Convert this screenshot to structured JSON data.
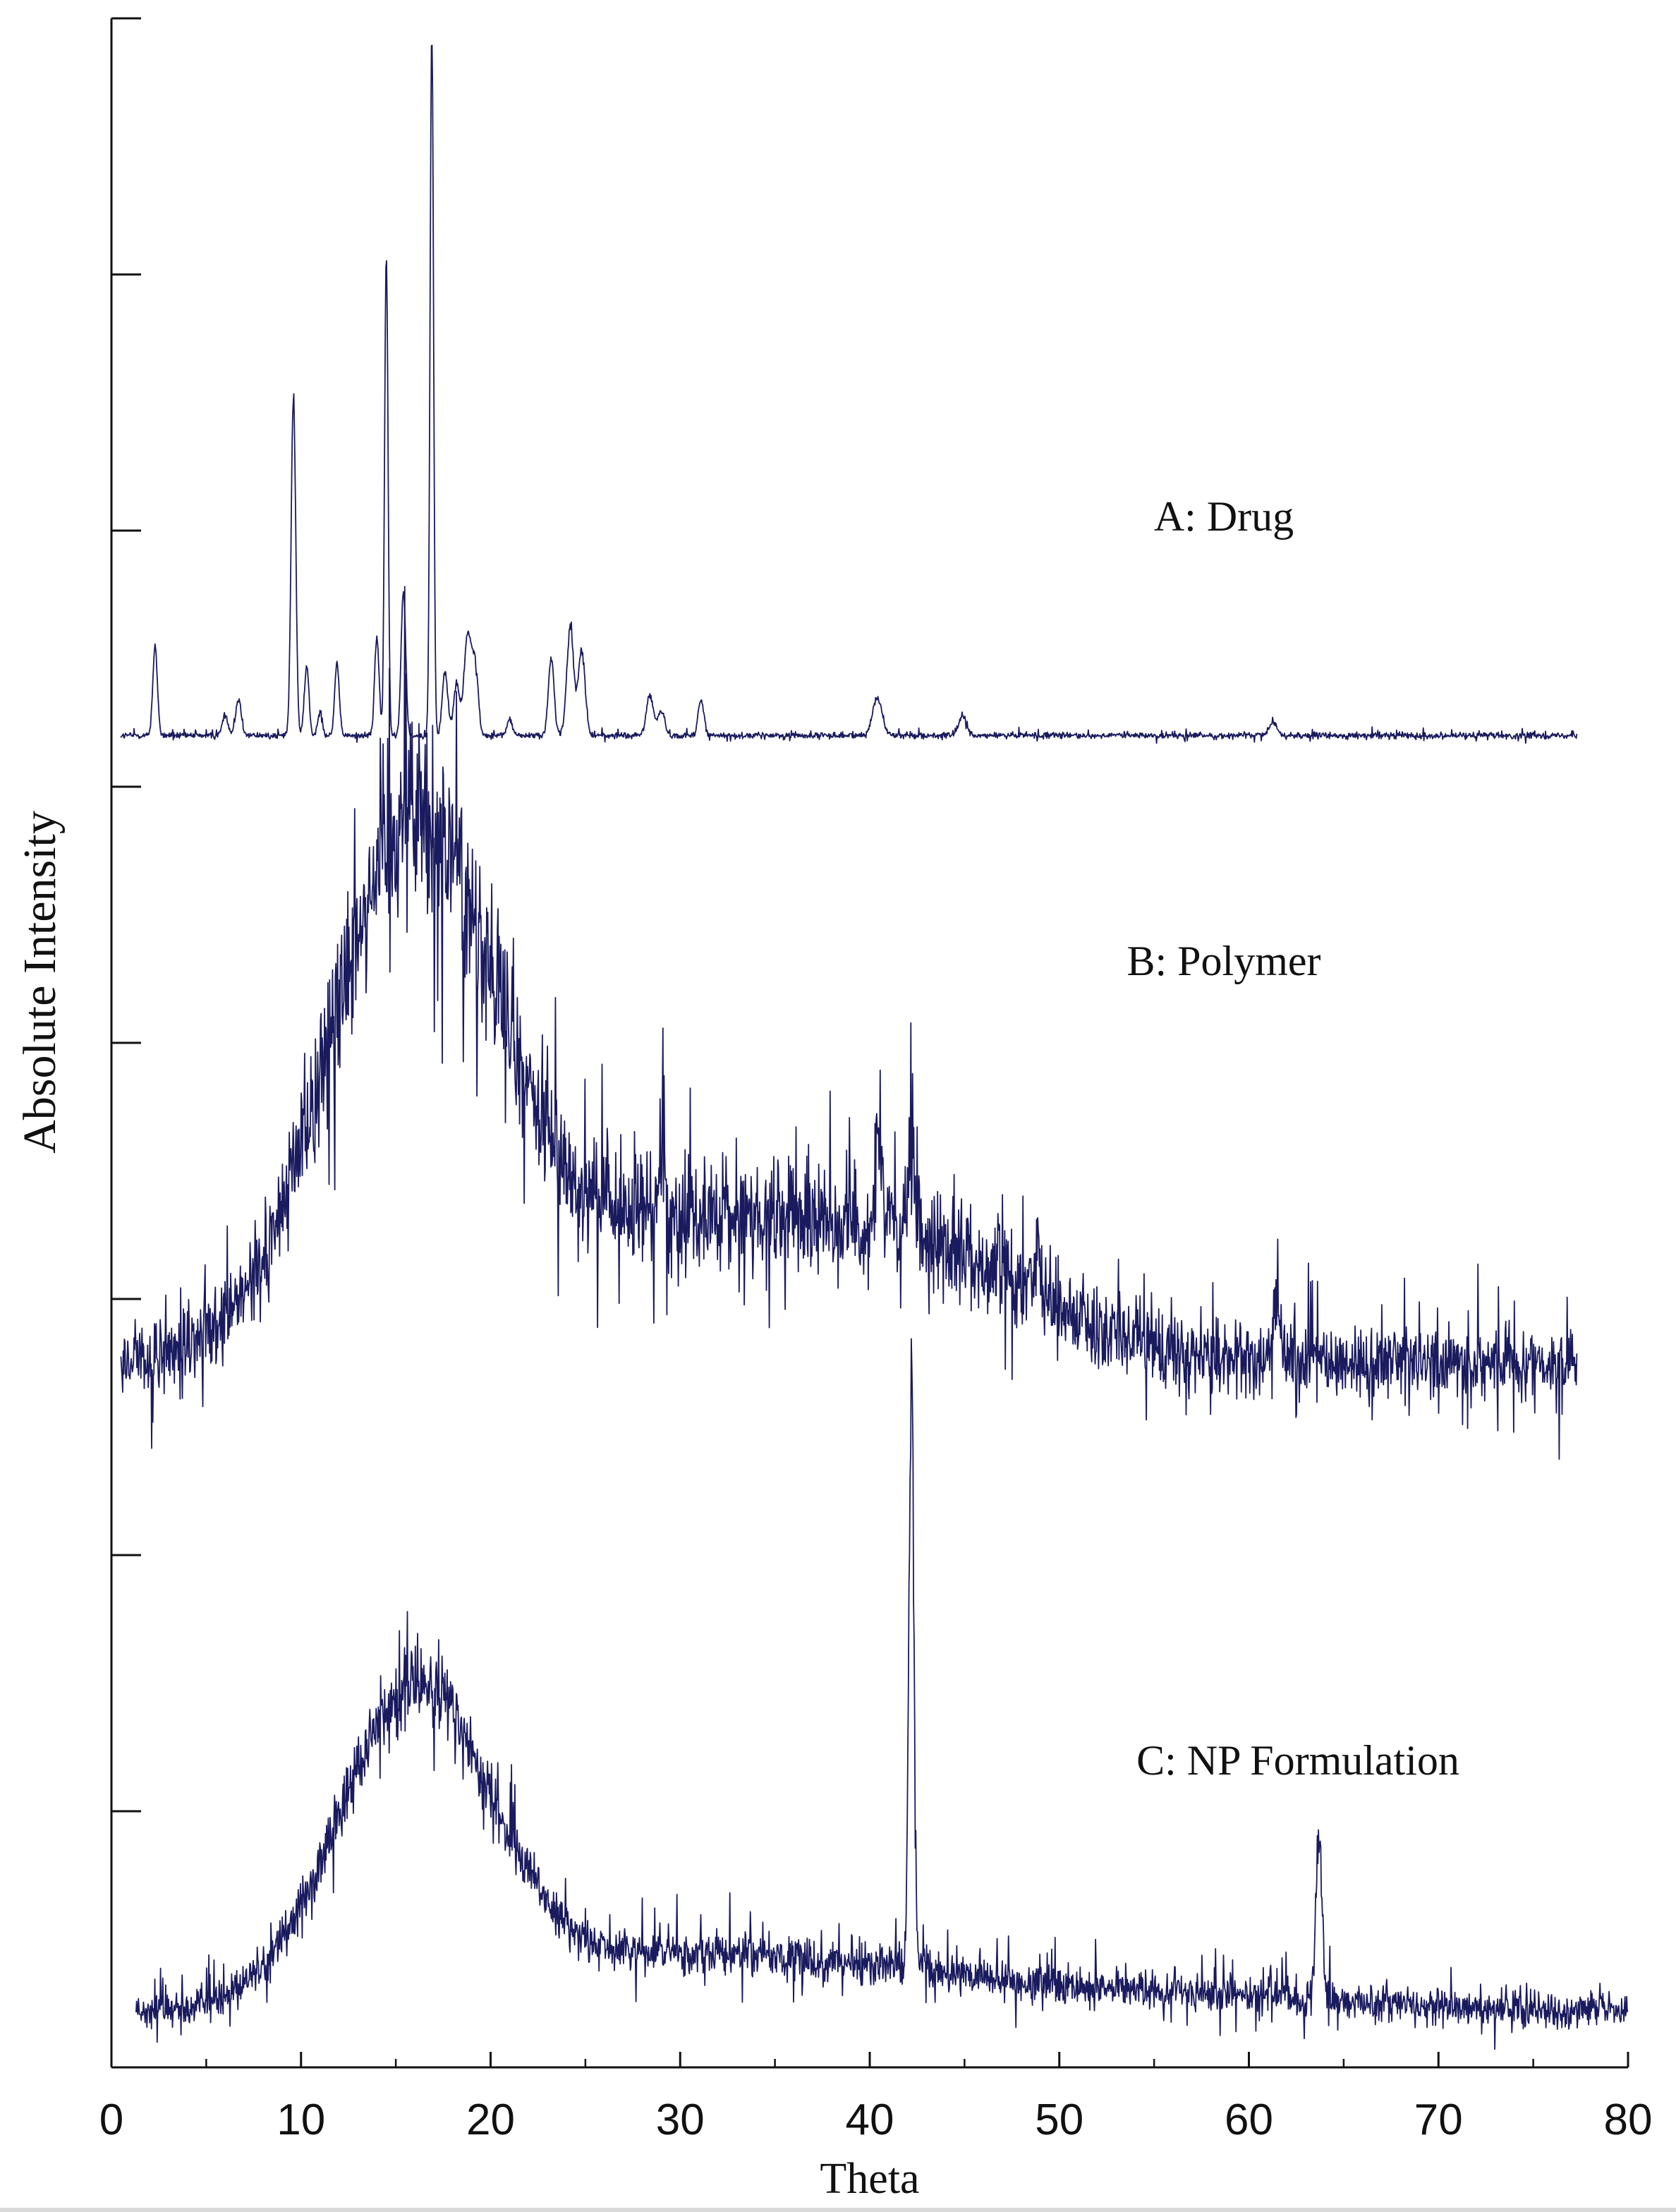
{
  "chart_data": {
    "type": "line",
    "title": "",
    "xlabel": "Theta",
    "ylabel": "Absolute Intensity",
    "xlim": [
      0,
      80
    ],
    "ylim": [
      0,
      8
    ],
    "x_ticks": [
      0,
      10,
      20,
      30,
      40,
      50,
      60,
      70,
      80
    ],
    "y_tick_values": [
      1,
      2,
      3,
      4,
      5,
      6,
      7,
      8
    ],
    "grid": false,
    "line_color": "#1a1a5e",
    "series": [
      {
        "name": "A: Drug",
        "label": "A: Drug",
        "x_range": [
          0.5,
          77.3
        ],
        "baseline": 5.2,
        "noise": 0.012,
        "peaks": [
          {
            "x": 2.3,
            "h": 0.35,
            "w": 0.12
          },
          {
            "x": 6.0,
            "h": 0.08,
            "w": 0.15
          },
          {
            "x": 6.7,
            "h": 0.14,
            "w": 0.15
          },
          {
            "x": 9.6,
            "h": 1.33,
            "w": 0.12
          },
          {
            "x": 10.3,
            "h": 0.27,
            "w": 0.12
          },
          {
            "x": 11.0,
            "h": 0.1,
            "w": 0.12
          },
          {
            "x": 11.9,
            "h": 0.28,
            "w": 0.12
          },
          {
            "x": 14.0,
            "h": 0.38,
            "w": 0.12
          },
          {
            "x": 14.5,
            "h": 1.87,
            "w": 0.09
          },
          {
            "x": 15.4,
            "h": 0.57,
            "w": 0.12
          },
          {
            "x": 16.9,
            "h": 2.75,
            "w": 0.09
          },
          {
            "x": 17.6,
            "h": 0.25,
            "w": 0.15
          },
          {
            "x": 18.2,
            "h": 0.2,
            "w": 0.15
          },
          {
            "x": 18.8,
            "h": 0.4,
            "w": 0.2
          },
          {
            "x": 19.2,
            "h": 0.25,
            "w": 0.15
          },
          {
            "x": 21.0,
            "h": 0.06,
            "w": 0.15
          },
          {
            "x": 23.2,
            "h": 0.3,
            "w": 0.15
          },
          {
            "x": 24.2,
            "h": 0.42,
            "w": 0.18
          },
          {
            "x": 24.8,
            "h": 0.33,
            "w": 0.18
          },
          {
            "x": 28.4,
            "h": 0.16,
            "w": 0.18
          },
          {
            "x": 29.0,
            "h": 0.1,
            "w": 0.18
          },
          {
            "x": 31.1,
            "h": 0.14,
            "w": 0.15
          },
          {
            "x": 40.4,
            "h": 0.15,
            "w": 0.25
          },
          {
            "x": 44.9,
            "h": 0.08,
            "w": 0.2
          },
          {
            "x": 61.3,
            "h": 0.05,
            "w": 0.2
          }
        ]
      },
      {
        "name": "B: Polymer",
        "label": "B: Polymer",
        "x_range": [
          0.5,
          77.3
        ],
        "baseline": 2.75,
        "noise": 0.14,
        "humps": [
          {
            "x": 15.8,
            "h": 2.0,
            "w": 4.3
          },
          {
            "x": 30.0,
            "h": 0.55,
            "w": 9.0
          },
          {
            "x": 44.0,
            "h": 0.3,
            "w": 6.0
          }
        ],
        "peaks": [
          {
            "x": 29.0,
            "h": 0.3,
            "w": 0.15
          },
          {
            "x": 40.5,
            "h": 0.35,
            "w": 0.15
          },
          {
            "x": 42.2,
            "h": 0.3,
            "w": 0.15
          },
          {
            "x": 48.9,
            "h": 0.2,
            "w": 0.15
          },
          {
            "x": 61.4,
            "h": 0.2,
            "w": 0.2
          }
        ]
      },
      {
        "name": "C: NP Formulation",
        "label": "C: NP Formulation",
        "x_range": [
          1.3,
          80.0
        ],
        "baseline": 0.22,
        "noise": 0.07,
        "humps": [
          {
            "x": 16.0,
            "h": 1.2,
            "w": 4.0
          },
          {
            "x": 30.0,
            "h": 0.2,
            "w": 10.0
          },
          {
            "x": 50.0,
            "h": 0.08,
            "w": 12.0
          }
        ],
        "peaks": [
          {
            "x": 42.2,
            "h": 2.3,
            "w": 0.13
          },
          {
            "x": 63.7,
            "h": 0.62,
            "w": 0.17
          }
        ]
      }
    ]
  }
}
